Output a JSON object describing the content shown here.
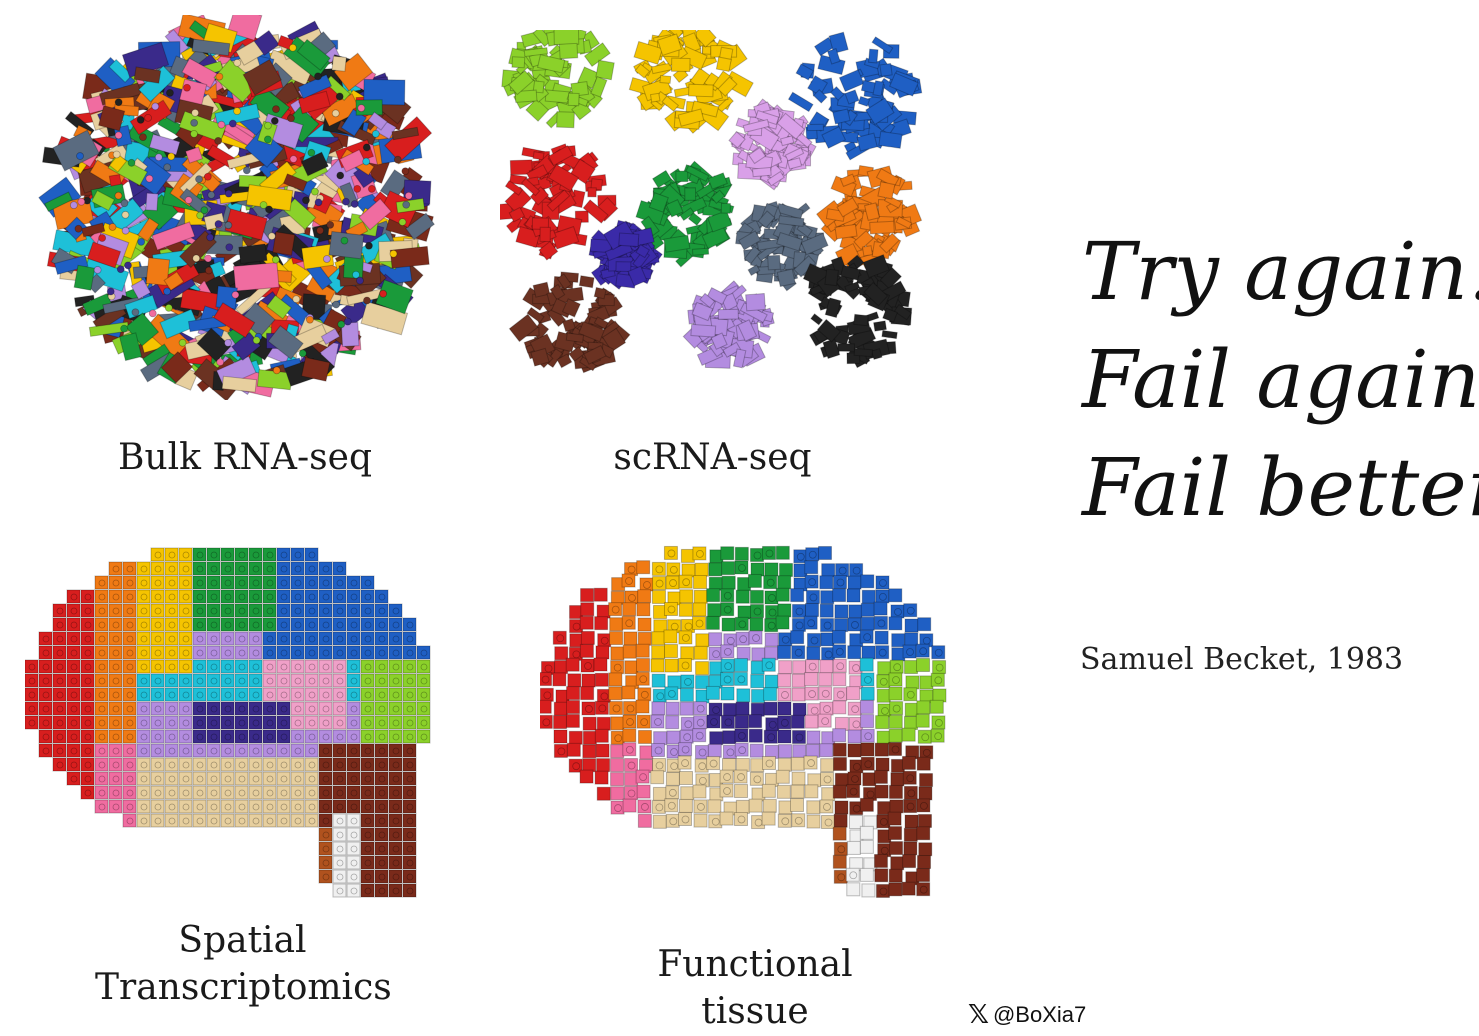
{
  "captions": {
    "bulk": "Bulk RNA-seq",
    "scrna": "scRNA-seq",
    "spatial_line1": "Spatial",
    "spatial_line2": "Transcriptomics",
    "functional": "Functional tissue"
  },
  "quote": {
    "line1": "Try again.",
    "line2": "Fail again.",
    "line3": "Fail better."
  },
  "attribution": "Samuel Becket, 1983",
  "credit": {
    "logo": "𝕏",
    "handle": "@BoXia7"
  },
  "palette": [
    "#d81e1e",
    "#f07a14",
    "#f5c400",
    "#1a9a3a",
    "#1f5fc4",
    "#8bd12a",
    "#1ec0d8",
    "#b38ce0",
    "#f06ca0",
    "#e7cf9e",
    "#7a2a1a",
    "#3a2a8a",
    "#222222",
    "#5a6b80",
    "#6b3222",
    "#f0f0f0"
  ]
}
